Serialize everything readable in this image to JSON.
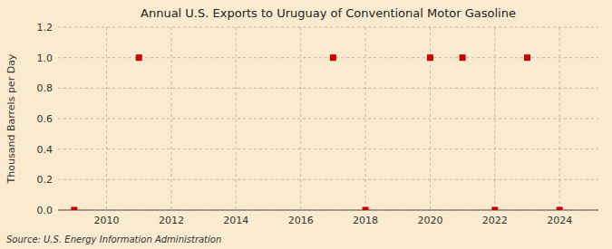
{
  "chart_data": {
    "type": "scatter",
    "title": "Annual U.S. Exports to Uruguay of Conventional Motor Gasoline",
    "y_label": "Thousand Barrels per Day",
    "source": "Source: U.S. Energy Information Administration",
    "x": [
      2009,
      2011,
      2017,
      2018,
      2020,
      2021,
      2022,
      2023,
      2024
    ],
    "values": [
      0.0,
      1.0,
      1.0,
      0.0,
      1.0,
      1.0,
      0.0,
      1.0,
      0.0
    ],
    "xlim": [
      2008.5,
      2025.2
    ],
    "ylim": [
      0.0,
      1.2
    ],
    "xticks": [
      2010,
      2012,
      2014,
      2016,
      2018,
      2020,
      2022,
      2024
    ],
    "yticks": [
      {
        "value": 0.0,
        "label": "0.0"
      },
      0.2,
      0.4,
      0.6,
      0.8,
      {
        "value": 1.0,
        "label": "1.0"
      },
      1.2
    ],
    "color": "#cc0000",
    "marker": "square",
    "grid": true
  }
}
